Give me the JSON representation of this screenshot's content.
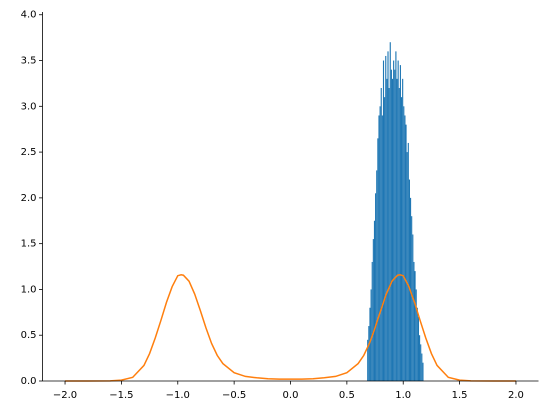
{
  "chart_data": {
    "type": "histogram",
    "color": "#1f77b4",
    "bins": [
      0.68,
      0.69,
      0.7,
      0.71,
      0.72,
      0.73,
      0.74,
      0.75,
      0.76,
      0.77,
      0.78,
      0.79,
      0.8,
      0.81,
      0.82,
      0.83,
      0.84,
      0.85,
      0.86,
      0.87,
      0.88,
      0.89,
      0.9,
      0.91,
      0.92,
      0.93,
      0.94,
      0.95,
      0.96,
      0.97,
      0.98,
      0.99,
      1.0,
      1.01,
      1.02,
      1.03,
      1.04,
      1.05,
      1.06,
      1.07,
      1.08,
      1.09,
      1.1,
      1.11,
      1.12,
      1.13,
      1.14,
      1.15,
      1.16,
      1.17,
      1.18
    ],
    "values": [
      0.45,
      0.6,
      0.8,
      1.0,
      1.3,
      1.55,
      1.75,
      2.05,
      2.3,
      2.65,
      2.9,
      3.0,
      3.2,
      2.9,
      3.5,
      3.1,
      3.55,
      3.3,
      3.6,
      3.2,
      3.7,
      3.4,
      3.3,
      3.5,
      3.4,
      3.6,
      3.3,
      3.5,
      3.2,
      3.45,
      3.1,
      3.3,
      3.0,
      2.9,
      2.8,
      2.5,
      2.6,
      2.2,
      2.0,
      1.8,
      1.6,
      1.3,
      1.2,
      1.0,
      0.8,
      0.7,
      0.5,
      0.4,
      0.3,
      0.2
    ],
    "overlay": {
      "type": "line",
      "color": "#ff7f0e",
      "x": [
        -2.0,
        -1.8,
        -1.6,
        -1.5,
        -1.4,
        -1.3,
        -1.25,
        -1.2,
        -1.15,
        -1.1,
        -1.05,
        -1.0,
        -0.97,
        -0.95,
        -0.9,
        -0.85,
        -0.8,
        -0.75,
        -0.7,
        -0.65,
        -0.6,
        -0.5,
        -0.4,
        -0.3,
        -0.2,
        -0.1,
        0,
        0.1,
        0.2,
        0.3,
        0.4,
        0.5,
        0.6,
        0.65,
        0.7,
        0.75,
        0.8,
        0.85,
        0.9,
        0.95,
        0.97,
        1.0,
        1.05,
        1.1,
        1.15,
        1.2,
        1.25,
        1.3,
        1.4,
        1.5,
        1.6,
        1.8,
        2.0
      ],
      "values": [
        0,
        0,
        0.002,
        0.01,
        0.04,
        0.17,
        0.3,
        0.47,
        0.66,
        0.86,
        1.03,
        1.15,
        1.16,
        1.155,
        1.09,
        0.95,
        0.77,
        0.58,
        0.41,
        0.28,
        0.19,
        0.09,
        0.05,
        0.035,
        0.025,
        0.02,
        0.02,
        0.02,
        0.025,
        0.035,
        0.05,
        0.09,
        0.19,
        0.28,
        0.41,
        0.58,
        0.77,
        0.95,
        1.09,
        1.155,
        1.16,
        1.15,
        1.03,
        0.86,
        0.66,
        0.47,
        0.3,
        0.17,
        0.04,
        0.01,
        0.002,
        0,
        0
      ]
    },
    "xlim": [
      -2.2,
      2.2
    ],
    "ylim": [
      0,
      4.03
    ],
    "xticks": [
      {
        "value": -2.0,
        "label": "−2.0"
      },
      {
        "value": -1.5,
        "label": "−1.5"
      },
      {
        "value": -1.0,
        "label": "−1.0"
      },
      {
        "value": -0.5,
        "label": "−0.5"
      },
      {
        "value": 0,
        "label": "0.0"
      },
      {
        "value": 0.5,
        "label": "0.5"
      },
      {
        "value": 1.0,
        "label": "1.0"
      },
      {
        "value": 1.5,
        "label": "1.5"
      },
      {
        "value": 2.0,
        "label": "2.0"
      }
    ],
    "yticks": [
      {
        "value": 0,
        "label": "0.0"
      },
      {
        "value": 0.5,
        "label": "0.5"
      },
      {
        "value": 1.0,
        "label": "1.0"
      },
      {
        "value": 1.5,
        "label": "1.5"
      },
      {
        "value": 2.0,
        "label": "2.0"
      },
      {
        "value": 2.5,
        "label": "2.5"
      },
      {
        "value": 3.0,
        "label": "3.0"
      },
      {
        "value": 3.5,
        "label": "3.5"
      },
      {
        "value": 4.0,
        "label": "4.0"
      }
    ]
  }
}
